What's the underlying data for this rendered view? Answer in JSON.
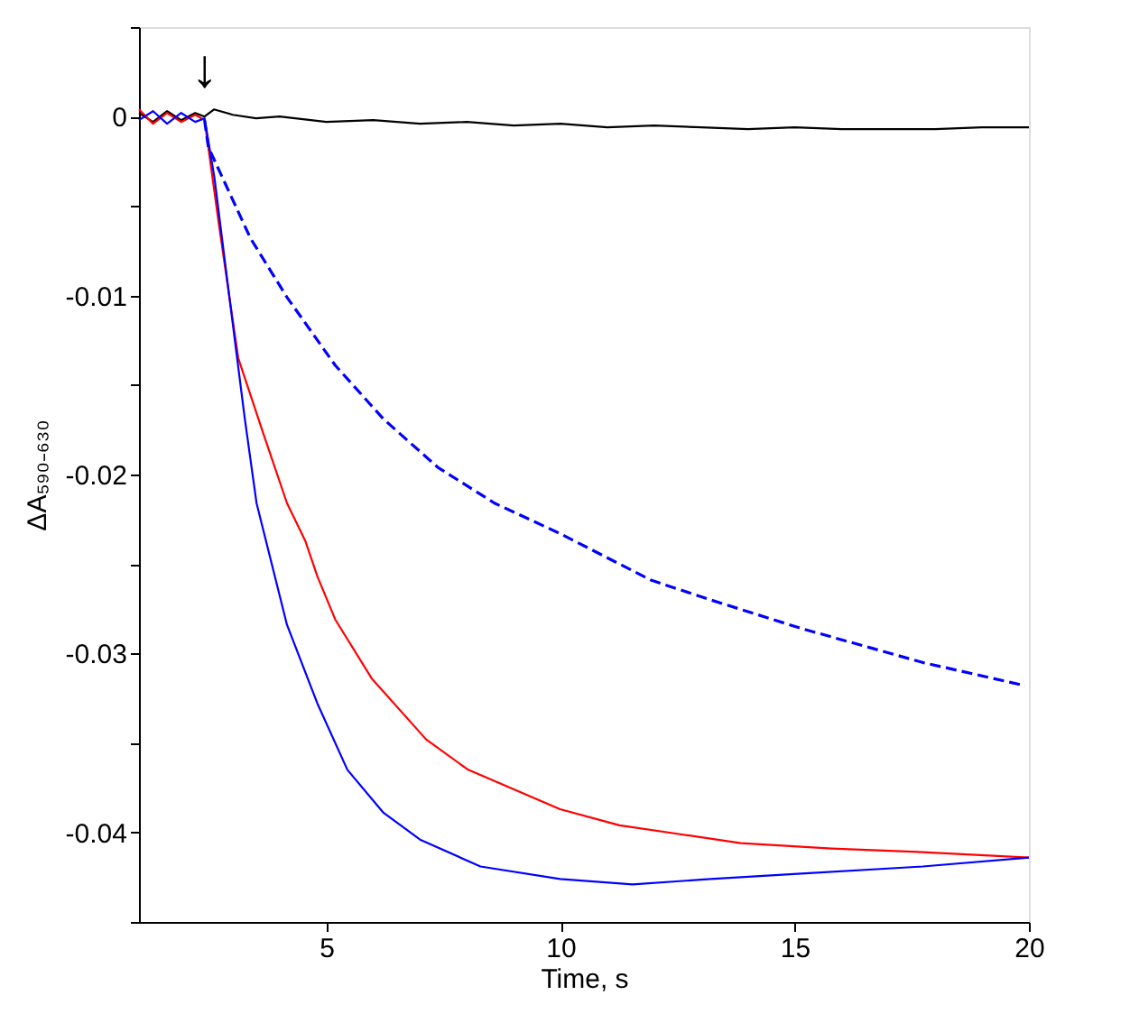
{
  "chart_data": {
    "type": "line",
    "xlabel": "Time, s",
    "ylabel": "ΔA₅₉₀₋₆₃₀",
    "xlim": [
      1,
      20
    ],
    "xticks": [
      5,
      10,
      15,
      20
    ],
    "ylim": [
      -0.045,
      0.005
    ],
    "yticks": [
      {
        "value": -0.045,
        "label": null
      },
      -0.04,
      {
        "value": -0.035,
        "label": null
      },
      -0.03,
      {
        "value": -0.025,
        "label": null
      },
      -0.02,
      {
        "value": -0.015,
        "label": null
      },
      -0.01,
      {
        "value": -0.005,
        "label": null
      },
      0,
      {
        "value": 0.005,
        "label": null
      }
    ],
    "grid": false,
    "annotations": [
      "↓"
    ],
    "series": [
      {
        "color": "#000000",
        "line_style": "solid",
        "x": [
          1,
          1.3,
          1.6,
          1.9,
          2.2,
          2.4,
          2.6,
          3,
          3.5,
          4,
          5,
          6,
          7,
          8,
          9,
          10,
          11,
          12,
          13,
          14,
          15,
          16,
          17,
          18,
          19,
          20
        ],
        "values": [
          0.0002,
          -0.0003,
          0.0003,
          -0.0002,
          0.0002,
          0,
          0.0004,
          0.0001,
          -0.0001,
          0,
          -0.0003,
          -0.0002,
          -0.0004,
          -0.0003,
          -0.0005,
          -0.0004,
          -0.0006,
          -0.0005,
          -0.0006,
          -0.0007,
          -0.0006,
          -0.0007,
          -0.0007,
          -0.0007,
          -0.0006,
          -0.0006
        ]
      },
      {
        "color": "#ff0000",
        "line_style": "solid",
        "x": [
          1,
          1.3,
          1.6,
          1.9,
          2.2,
          2.4,
          2.71,
          3.12,
          3.64,
          4.16,
          4.55,
          4.81,
          5.19,
          5.97,
          7.13,
          8.03,
          9.99,
          11.26,
          12.56,
          13.85,
          15.79,
          17.73,
          20
        ],
        "values": [
          0.0004,
          -0.0004,
          0.0002,
          -0.0003,
          0.0001,
          -0.0002,
          -0.0061,
          -0.0135,
          -0.0176,
          -0.0216,
          -0.0237,
          -0.0257,
          -0.0281,
          -0.0314,
          -0.0348,
          -0.0365,
          -0.0387,
          -0.0396,
          -0.0401,
          -0.0406,
          -0.0409,
          -0.0411,
          -0.0414
        ]
      },
      {
        "color": "#0000ff",
        "line_style": "solid",
        "x": [
          1,
          1.3,
          1.6,
          1.9,
          2.2,
          2.4,
          2.61,
          2.93,
          3.26,
          3.51,
          4.16,
          4.81,
          5.45,
          6.22,
          7.0,
          8.29,
          9.99,
          11.54,
          13.2,
          15.14,
          17.73,
          20
        ],
        "values": [
          -0.0002,
          0.0003,
          -0.0004,
          0.0002,
          -0.0003,
          -0.0001,
          -0.0034,
          -0.0101,
          -0.0169,
          -0.0216,
          -0.0284,
          -0.0328,
          -0.0365,
          -0.0389,
          -0.0404,
          -0.0419,
          -0.0426,
          -0.0429,
          -0.0426,
          -0.0423,
          -0.0419,
          -0.0414
        ]
      },
      {
        "color": "#0000ff",
        "line_style": "dashed",
        "x": [
          2.4,
          2.48,
          3.38,
          4.16,
          5.19,
          6.22,
          7.38,
          8.59,
          9.99,
          11.93,
          13.2,
          15.14,
          17.73,
          19.92
        ],
        "values": [
          -0.0002,
          -0.0017,
          -0.0068,
          -0.0101,
          -0.0139,
          -0.0169,
          -0.0196,
          -0.0216,
          -0.0233,
          -0.0259,
          -0.027,
          -0.0286,
          -0.0305,
          -0.0318
        ]
      }
    ]
  }
}
